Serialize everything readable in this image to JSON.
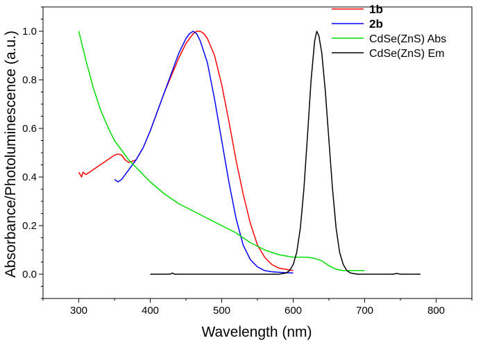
{
  "chart_data": {
    "type": "line",
    "title": "",
    "xlabel": "Wavelength (nm)",
    "ylabel": "Absorbance/Photoluminescence (a.u.)",
    "xlim": [
      250,
      850
    ],
    "ylim": [
      -0.1,
      1.1
    ],
    "x_ticks": [
      300,
      400,
      500,
      600,
      700,
      800
    ],
    "x_tick_labels": [
      "300",
      "400",
      "500",
      "600",
      "700",
      "800"
    ],
    "y_ticks": [
      0.0,
      0.2,
      0.4,
      0.6,
      0.8,
      1.0
    ],
    "y_tick_labels": [
      "0.0",
      "0.2",
      "0.4",
      "0.6",
      "0.8",
      "1.0"
    ],
    "grid": false,
    "legend_position": "top-right",
    "series": [
      {
        "name": "1b",
        "color": "#ff0000",
        "bold": true,
        "x": [
          300,
          302,
          304,
          306,
          310,
          320,
          330,
          340,
          350,
          355,
          360,
          365,
          370,
          380,
          390,
          400,
          410,
          420,
          430,
          440,
          450,
          460,
          465,
          470,
          475,
          480,
          490,
          500,
          510,
          520,
          530,
          540,
          550,
          560,
          570,
          580,
          590,
          600
        ],
        "values": [
          0.42,
          0.41,
          0.4,
          0.42,
          0.41,
          0.43,
          0.45,
          0.47,
          0.49,
          0.495,
          0.49,
          0.47,
          0.46,
          0.47,
          0.52,
          0.59,
          0.67,
          0.75,
          0.82,
          0.89,
          0.95,
          0.99,
          1.0,
          1.0,
          0.99,
          0.97,
          0.9,
          0.78,
          0.63,
          0.47,
          0.33,
          0.21,
          0.12,
          0.07,
          0.04,
          0.025,
          0.02,
          0.015
        ]
      },
      {
        "name": "2b",
        "color": "#0000ff",
        "bold": true,
        "x": [
          350,
          355,
          360,
          370,
          380,
          390,
          400,
          410,
          420,
          430,
          440,
          450,
          455,
          460,
          465,
          470,
          480,
          490,
          500,
          510,
          520,
          530,
          540,
          550,
          560,
          570,
          580,
          590,
          600
        ],
        "values": [
          0.39,
          0.38,
          0.39,
          0.43,
          0.47,
          0.52,
          0.59,
          0.67,
          0.75,
          0.83,
          0.91,
          0.97,
          0.99,
          1.0,
          0.99,
          0.96,
          0.87,
          0.72,
          0.55,
          0.38,
          0.23,
          0.12,
          0.06,
          0.03,
          0.015,
          0.01,
          0.008,
          0.006,
          0.005
        ]
      },
      {
        "name": "CdSe(ZnS) Abs",
        "color": "#00dd00",
        "bold": false,
        "x": [
          300,
          310,
          320,
          330,
          340,
          350,
          360,
          370,
          380,
          400,
          420,
          440,
          460,
          480,
          500,
          520,
          540,
          560,
          580,
          600,
          610,
          620,
          630,
          640,
          650,
          660,
          670,
          680,
          690,
          700
        ],
        "values": [
          1.0,
          0.88,
          0.77,
          0.68,
          0.61,
          0.55,
          0.51,
          0.47,
          0.44,
          0.38,
          0.33,
          0.29,
          0.26,
          0.23,
          0.2,
          0.17,
          0.13,
          0.1,
          0.08,
          0.07,
          0.07,
          0.07,
          0.065,
          0.055,
          0.035,
          0.02,
          0.015,
          0.015,
          0.015,
          0.015
        ]
      },
      {
        "name": "CdSe(ZnS) Em",
        "color": "#000000",
        "bold": false,
        "x": [
          400,
          420,
          428,
          431,
          434,
          440,
          500,
          550,
          580,
          590,
          595,
          600,
          605,
          610,
          615,
          620,
          625,
          630,
          633,
          636,
          640,
          645,
          650,
          655,
          660,
          665,
          670,
          675,
          680,
          690,
          700,
          740,
          745,
          750,
          778
        ],
        "values": [
          0.0,
          0.0,
          0.0,
          0.005,
          0.0,
          0.0,
          0.0,
          0.0,
          0.0,
          0.005,
          0.015,
          0.04,
          0.09,
          0.19,
          0.35,
          0.57,
          0.8,
          0.96,
          1.0,
          0.98,
          0.91,
          0.75,
          0.55,
          0.35,
          0.19,
          0.09,
          0.04,
          0.015,
          0.005,
          0.0,
          0.0,
          0.0,
          0.003,
          0.0,
          0.0
        ]
      }
    ]
  }
}
